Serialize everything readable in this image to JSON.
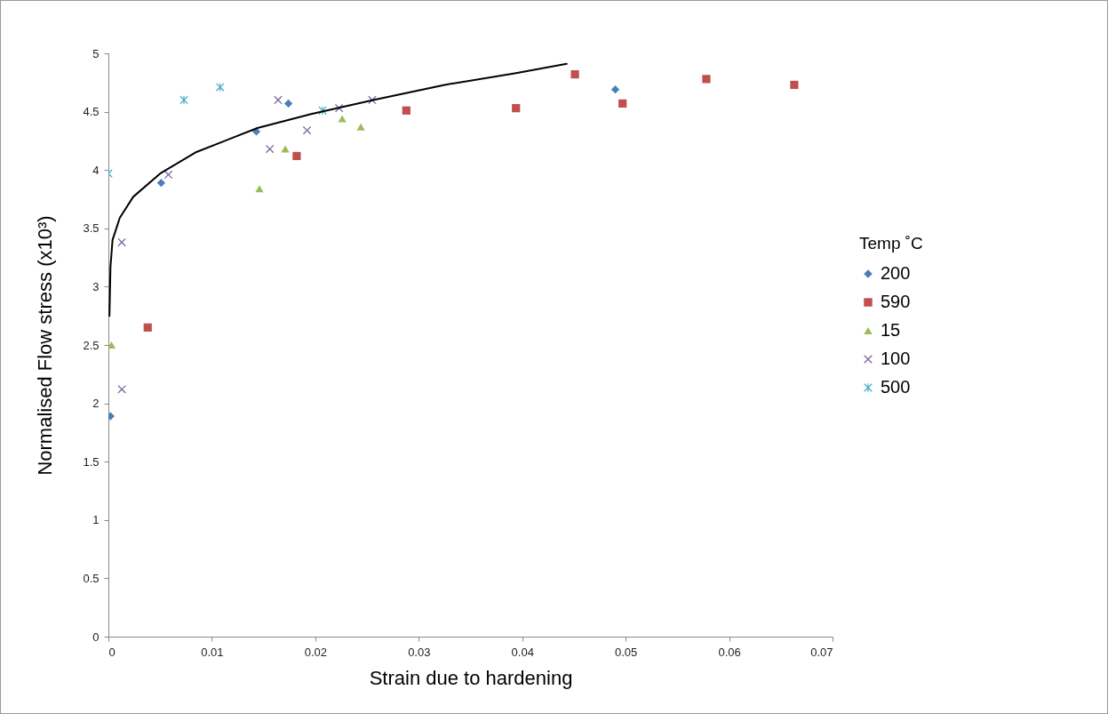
{
  "chart_data": {
    "type": "scatter",
    "xlabel": "Strain due to hardening",
    "ylabel": "Normalised Flow stress (x10³)",
    "legend_title": "Temp ˚C",
    "legend": "right",
    "grid": false,
    "xlim": [
      0,
      0.07
    ],
    "xticks": [
      0,
      0.01,
      0.02,
      0.03,
      0.04,
      0.05,
      0.06,
      0.07
    ],
    "ylim": [
      0,
      5
    ],
    "yticks": [
      0,
      0.5,
      1,
      1.5,
      2,
      2.5,
      3,
      3.5,
      4,
      4.5,
      5
    ],
    "series": [
      {
        "name": "200",
        "color": "#4a7ebb",
        "marker": "diamond",
        "x": [
          0.0002,
          0.0051,
          0.0143,
          0.0174,
          0.049
        ],
        "values": [
          1.89,
          3.89,
          4.33,
          4.57,
          4.69
        ]
      },
      {
        "name": "590",
        "color": "#c0504d",
        "marker": "square",
        "x": [
          0.0038,
          0.0182,
          0.0288,
          0.0394,
          0.0451,
          0.0497,
          0.0578,
          0.0663
        ],
        "values": [
          2.65,
          4.12,
          4.51,
          4.53,
          4.82,
          4.57,
          4.78,
          4.73
        ]
      },
      {
        "name": "15",
        "color": "#9bbb59",
        "marker": "triangle",
        "x": [
          0.0003,
          0.0146,
          0.0171,
          0.0226,
          0.0244
        ],
        "values": [
          2.5,
          3.84,
          4.18,
          4.44,
          4.37
        ]
      },
      {
        "name": "100",
        "color": "#8064a2",
        "marker": "cross",
        "x": [
          0.0013,
          0.0013,
          0.0058,
          0.0156,
          0.0164,
          0.0192,
          0.0223,
          0.0255
        ],
        "values": [
          2.12,
          3.38,
          3.96,
          4.18,
          4.6,
          4.34,
          4.53,
          4.6
        ]
      },
      {
        "name": "500",
        "color": "#4bacc6",
        "marker": "star",
        "x": [
          0,
          0.0073,
          0.0108,
          0.0207
        ],
        "values": [
          3.97,
          4.6,
          4.71,
          4.51
        ]
      },
      {
        "type": "line",
        "color": "#000000",
        "marker": "none",
        "x": [
          0.0001,
          0.0002,
          0.0004,
          0.0011,
          0.0024,
          0.005,
          0.0084,
          0.0144,
          0.0196,
          0.0256,
          0.0325,
          0.0394,
          0.0443
        ],
        "values": [
          2.75,
          3.17,
          3.4,
          3.59,
          3.77,
          3.97,
          4.15,
          4.36,
          4.48,
          4.6,
          4.73,
          4.83,
          4.91
        ]
      }
    ]
  }
}
